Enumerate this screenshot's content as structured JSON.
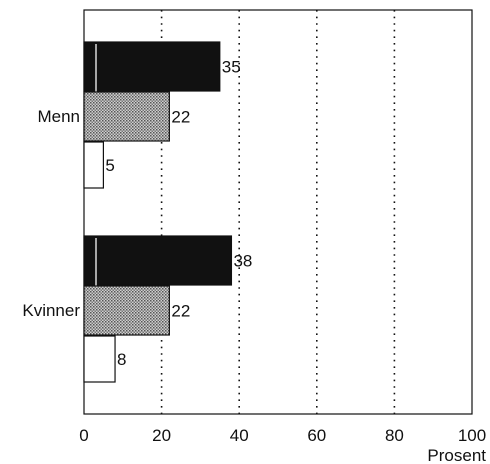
{
  "chart_data": {
    "type": "bar",
    "orientation": "horizontal",
    "categories": [
      "Menn",
      "Kvinner"
    ],
    "series": [
      {
        "values": [
          35,
          38
        ],
        "fill": "#111111"
      },
      {
        "values": [
          22,
          22
        ],
        "fill": "#9a9a9a"
      },
      {
        "values": [
          5,
          8
        ],
        "fill": "#ffffff"
      }
    ],
    "xlabel": "Prosent",
    "xlim": [
      0,
      100
    ],
    "xticks": [
      0,
      20,
      40,
      60,
      80,
      100
    ],
    "grid": "vertical-dotted",
    "legend": "none"
  }
}
